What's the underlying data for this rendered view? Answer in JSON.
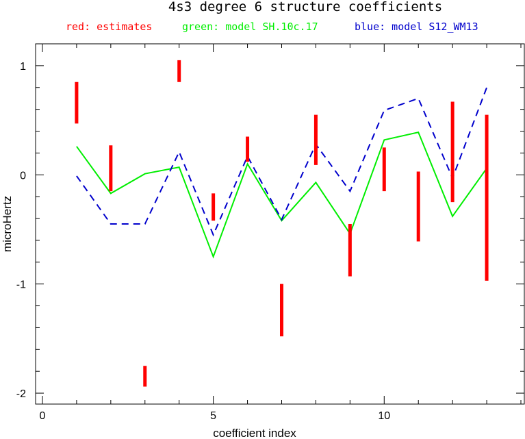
{
  "chart_data": {
    "type": "line",
    "title": "4s3 degree 6 structure coefficients",
    "xlabel": "coefficient index",
    "ylabel": "microHertz",
    "xlim": [
      -0.2,
      14.1
    ],
    "ylim": [
      -2.1,
      1.2
    ],
    "x_ticks": [
      0,
      5,
      10
    ],
    "y_ticks": [
      1,
      0,
      -1,
      -2
    ],
    "grid": false,
    "legend_position": "top",
    "legend": {
      "red": "red: estimates",
      "green": "green: model SH.10c.17",
      "blue": "blue: model S12_WM13"
    },
    "colors": {
      "red": "#ff0000",
      "green": "#00ee00",
      "blue": "#0000cc"
    },
    "estimates": {
      "x": [
        1,
        2,
        3,
        4,
        5,
        6,
        7,
        8,
        9,
        10,
        11,
        12,
        13
      ],
      "low": [
        0.47,
        -0.15,
        -1.94,
        0.85,
        -0.42,
        0.12,
        -1.48,
        0.09,
        -0.93,
        -0.15,
        -0.61,
        -0.25,
        -0.97
      ],
      "high": [
        0.85,
        0.27,
        -1.75,
        1.05,
        -0.17,
        0.35,
        -1.0,
        0.55,
        -0.45,
        0.25,
        0.03,
        0.67,
        0.55
      ]
    },
    "series": [
      {
        "name": "green: model SH.10c.17",
        "x": [
          1,
          2,
          3,
          4,
          5,
          6,
          7,
          8,
          9,
          10,
          11,
          12,
          13
        ],
        "values": [
          0.26,
          -0.17,
          0.01,
          0.07,
          -0.75,
          0.1,
          -0.42,
          -0.07,
          -0.54,
          0.32,
          0.39,
          -0.38,
          0.06
        ]
      },
      {
        "name": "blue: model S12_WM13",
        "x": [
          1,
          2,
          3,
          4,
          5,
          6,
          7,
          8,
          9,
          10,
          11,
          12,
          13
        ],
        "values": [
          -0.01,
          -0.45,
          -0.45,
          0.21,
          -0.55,
          0.17,
          -0.41,
          0.28,
          -0.15,
          0.59,
          0.7,
          -0.03,
          0.8
        ]
      }
    ]
  }
}
